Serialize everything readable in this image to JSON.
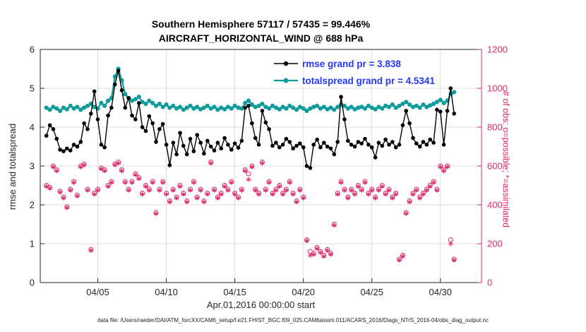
{
  "title": {
    "line1": "Southern Hemisphere 57117 / 57435 = 99.446%",
    "line2": "AIRCRAFT_HORIZONTAL_WIND @ 688 hPa"
  },
  "footer": "data file: /Users/raeder/DAI/ATM_forcXX/CAM6_setup/f.e21.FHIST_BGC.f09_025.CAM6assim.011/ACARS_2016/Diags_NTrS_2016-04/obs_diag_output.nc",
  "colors": {
    "rmse": "#000000",
    "totalspread": "#0f9b9b",
    "obs": "#e0256c",
    "legend_text": "#2438ff",
    "grid": "#dcdcdc",
    "axis": "#262626"
  },
  "chart_data": {
    "type": "line",
    "title": "Southern Hemisphere 57117 / 57435 = 99.446% — AIRCRAFT_HORIZONTAL_WIND @ 688 hPa",
    "xlabel": "Apr.01,2016 00:00:00 start",
    "ylabel_left": "rmse and totalspread",
    "ylabel_right": "# of obs: o=possible; *=assimilated",
    "ylim_left": [
      0,
      6
    ],
    "ylim_right": [
      0,
      1200
    ],
    "yticks_left": [
      0,
      1,
      2,
      3,
      4,
      5,
      6
    ],
    "yticks_right": [
      0,
      200,
      400,
      600,
      800,
      1000,
      1200
    ],
    "xlim_days": [
      0.8,
      33
    ],
    "xticks": [
      {
        "day": 5,
        "label": "04/05"
      },
      {
        "day": 10,
        "label": "04/10"
      },
      {
        "day": 15,
        "label": "04/15"
      },
      {
        "day": 20,
        "label": "04/20"
      },
      {
        "day": 25,
        "label": "04/25"
      },
      {
        "day": 30,
        "label": "04/30"
      }
    ],
    "grid": true,
    "legend_position": "upper-center-inside",
    "legend": [
      {
        "name": "rmse grand pr = 3.838",
        "color": "#000000"
      },
      {
        "name": "totalspread grand pr = 4.5341",
        "color": "#0f9b9b"
      }
    ],
    "x_start": 1.25,
    "x_step": 0.25,
    "x_count": 120,
    "series": [
      {
        "name": "rmse",
        "axis": "left",
        "style": "line+dot",
        "color": "#000000",
        "values": [
          3.78,
          4.05,
          3.95,
          3.7,
          3.42,
          3.38,
          3.45,
          3.4,
          3.55,
          3.5,
          3.62,
          4.1,
          3.95,
          4.35,
          4.92,
          4.2,
          3.55,
          3.48,
          4.3,
          4.5,
          5.1,
          5.45,
          4.95,
          4.5,
          4.75,
          4.3,
          4.2,
          4.62,
          4.0,
          3.9,
          4.28,
          4.1,
          3.62,
          3.95,
          4.08,
          3.55,
          3.02,
          3.6,
          3.3,
          3.85,
          3.52,
          3.3,
          3.7,
          3.38,
          3.8,
          3.6,
          3.32,
          3.65,
          3.5,
          3.4,
          3.6,
          3.45,
          3.72,
          3.55,
          3.42,
          3.58,
          3.47,
          3.65,
          4.5,
          4.55,
          4.1,
          3.72,
          3.55,
          4.42,
          4.12,
          3.95,
          3.52,
          3.6,
          3.48,
          3.55,
          3.7,
          3.62,
          3.45,
          3.52,
          3.58,
          3.48,
          3.0,
          2.95,
          3.55,
          3.68,
          3.48,
          3.6,
          3.5,
          3.45,
          3.3,
          3.62,
          4.78,
          4.2,
          3.65,
          3.55,
          3.5,
          3.62,
          3.58,
          3.7,
          3.55,
          3.48,
          3.22,
          3.6,
          3.52,
          3.68,
          3.55,
          3.62,
          3.48,
          3.55,
          4.05,
          4.42,
          4.1,
          3.72,
          3.58,
          3.5,
          3.62,
          3.55,
          3.68,
          3.6,
          4.45,
          4.4,
          3.55,
          4.42,
          5.0,
          4.35
        ]
      },
      {
        "name": "totalspread",
        "axis": "left",
        "style": "line+dot",
        "color": "#0f9b9b",
        "values": [
          4.5,
          4.45,
          4.52,
          4.48,
          4.42,
          4.5,
          4.46,
          4.55,
          4.48,
          4.52,
          4.45,
          4.5,
          4.55,
          4.6,
          4.52,
          4.48,
          4.62,
          4.55,
          4.68,
          4.75,
          5.3,
          5.5,
          5.2,
          4.85,
          4.75,
          4.68,
          4.72,
          4.78,
          4.65,
          4.6,
          4.68,
          4.62,
          4.55,
          4.6,
          4.52,
          4.58,
          4.5,
          4.55,
          4.48,
          4.52,
          4.45,
          4.5,
          4.55,
          4.48,
          4.52,
          4.46,
          4.5,
          4.55,
          4.48,
          4.52,
          4.45,
          4.5,
          4.46,
          4.52,
          4.48,
          4.55,
          4.5,
          4.48,
          4.62,
          4.68,
          4.58,
          4.52,
          4.55,
          4.6,
          4.52,
          4.48,
          4.55,
          4.5,
          4.46,
          4.52,
          4.48,
          4.55,
          4.5,
          4.45,
          4.52,
          4.48,
          4.42,
          4.48,
          4.52,
          4.55,
          4.48,
          4.52,
          4.46,
          4.5,
          4.45,
          4.52,
          4.58,
          4.55,
          4.48,
          4.52,
          4.46,
          4.5,
          4.52,
          4.48,
          4.55,
          4.5,
          4.46,
          4.52,
          4.48,
          4.55,
          4.52,
          4.58,
          4.5,
          4.55,
          4.6,
          4.65,
          4.58,
          4.52,
          4.55,
          4.5,
          4.58,
          4.52,
          4.56,
          4.6,
          4.65,
          4.7,
          4.62,
          4.68,
          4.85,
          4.9
        ]
      },
      {
        "name": "obs_possible",
        "axis": "right",
        "style": "circle",
        "color": "#e0256c",
        "values": [
          500,
          490,
          600,
          580,
          470,
          440,
          390,
          480,
          520,
          450,
          600,
          610,
          480,
          170,
          460,
          480,
          590,
          580,
          500,
          520,
          610,
          620,
          580,
          520,
          480,
          520,
          560,
          540,
          460,
          500,
          480,
          520,
          360,
          480,
          520,
          460,
          420,
          480,
          440,
          500,
          460,
          420,
          480,
          520,
          440,
          480,
          420,
          460,
          620,
          480,
          440,
          460,
          500,
          480,
          520,
          460,
          440,
          480,
          580,
          560,
          600,
          480,
          460,
          620,
          480,
          520,
          460,
          480,
          500,
          460,
          480,
          520,
          460,
          420,
          480,
          440,
          220,
          160,
          150,
          180,
          160,
          140,
          170,
          150,
          300,
          460,
          520,
          480,
          440,
          480,
          460,
          500,
          480,
          520,
          460,
          480,
          440,
          480,
          500,
          460,
          480,
          440,
          460,
          120,
          140,
          360,
          420,
          460,
          480,
          440,
          460,
          480,
          500,
          520,
          480,
          600,
          580,
          600,
          220,
          120
        ]
      },
      {
        "name": "obs_assimilated",
        "axis": "right",
        "style": "asterisk",
        "color": "#e0256c",
        "values": [
          495,
          485,
          595,
          575,
          465,
          435,
          385,
          475,
          515,
          445,
          595,
          605,
          475,
          165,
          455,
          475,
          585,
          575,
          495,
          515,
          605,
          615,
          575,
          515,
          475,
          515,
          555,
          535,
          455,
          495,
          475,
          515,
          355,
          475,
          515,
          455,
          415,
          475,
          435,
          495,
          455,
          415,
          475,
          515,
          435,
          475,
          415,
          455,
          615,
          475,
          435,
          455,
          495,
          475,
          515,
          455,
          435,
          475,
          575,
          530,
          595,
          475,
          455,
          615,
          475,
          515,
          455,
          475,
          495,
          455,
          475,
          515,
          455,
          415,
          475,
          435,
          215,
          140,
          145,
          175,
          155,
          135,
          165,
          145,
          295,
          455,
          515,
          475,
          435,
          475,
          455,
          495,
          475,
          515,
          455,
          475,
          435,
          475,
          495,
          455,
          475,
          435,
          455,
          115,
          135,
          355,
          415,
          455,
          475,
          435,
          455,
          475,
          495,
          515,
          475,
          595,
          575,
          595,
          200,
          115
        ]
      }
    ]
  }
}
